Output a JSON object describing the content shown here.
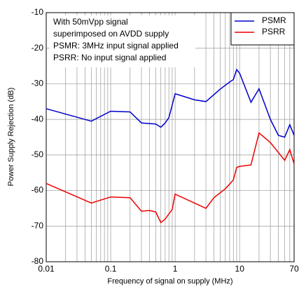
{
  "chart_data": {
    "type": "line",
    "xlabel": "Frequency of signal on supply (MHz)",
    "ylabel": "Power Supply Rejection (dB)",
    "annotations": [
      "With 50mVpp signal",
      "superimposed on AVDD supply",
      "PSMR: 3MHz input signal applied",
      "PSRR: No input signal applied"
    ],
    "xscale": "log",
    "xlim": [
      0.01,
      70
    ],
    "xticks": [
      0.01,
      0.1,
      1,
      10,
      70
    ],
    "ylim": [
      -80,
      -10
    ],
    "yticks": [
      -80,
      -70,
      -60,
      -50,
      -40,
      -30,
      -20,
      -10
    ],
    "grid": true,
    "legend": "upper right",
    "series": [
      {
        "name": "PSMR",
        "color": "#0000cc",
        "x": [
          0.01,
          0.05,
          0.1,
          0.2,
          0.3,
          0.5,
          0.6,
          0.7,
          0.8,
          1,
          2,
          3,
          5,
          7,
          8,
          9,
          10,
          15,
          20,
          30,
          40,
          50,
          60,
          70
        ],
        "values": [
          -37,
          -40.5,
          -37.7,
          -37.9,
          -41,
          -41.3,
          -42.2,
          -41,
          -39.5,
          -32.8,
          -34.5,
          -35,
          -31.5,
          -29.5,
          -28.8,
          -26,
          -27,
          -35.2,
          -31.4,
          -40,
          -44.5,
          -45,
          -41.5,
          -44.5
        ]
      },
      {
        "name": "PSRR",
        "color": "#ee0000",
        "x": [
          0.01,
          0.05,
          0.1,
          0.2,
          0.3,
          0.4,
          0.5,
          0.6,
          0.7,
          0.9,
          1,
          3,
          4,
          6,
          8,
          9,
          10,
          15,
          20,
          30,
          50,
          60,
          70
        ],
        "values": [
          -58,
          -63.5,
          -61.8,
          -62,
          -65.8,
          -65.6,
          -66,
          -69,
          -68,
          -65.3,
          -61,
          -65,
          -62,
          -59.5,
          -57,
          -53.5,
          -53.2,
          -52.8,
          -43.8,
          -46.5,
          -51.5,
          -48.5,
          -52.5
        ]
      }
    ]
  }
}
